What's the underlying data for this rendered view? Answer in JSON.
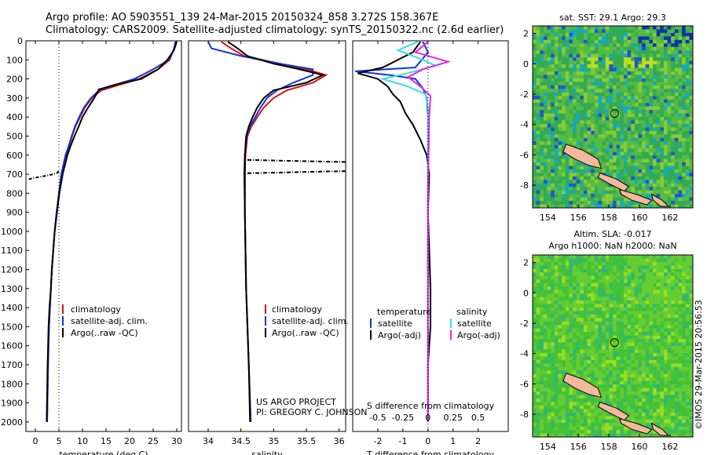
{
  "header": {
    "line1": "Argo profile: AO 5903551_139 24-Mar-2015 20150324_858 3.272S 158.367E",
    "line2": "Climatology: CARS2009. Satellite-adjusted climatology: synTS_20150322.nc (2.6d earlier)"
  },
  "colors": {
    "climatology": "#dd1111",
    "satellite": "#1133dd",
    "argo": "#000000",
    "cyan": "#33ddee",
    "magenta": "#ee22dd",
    "land": "#f2b99c"
  },
  "chart_data": [
    {
      "id": "temperature",
      "type": "line",
      "xlabel": "temperature (deg C)",
      "xlim": [
        -2,
        31
      ],
      "ylim": [
        0,
        2050
      ],
      "xticks": [
        0,
        5,
        10,
        15,
        20,
        25,
        30
      ],
      "yticks": [
        0,
        100,
        200,
        300,
        400,
        500,
        600,
        700,
        800,
        900,
        1000,
        1100,
        1200,
        1300,
        1400,
        1500,
        1600,
        1700,
        1800,
        1900,
        2000
      ],
      "legend": {
        "position": "lower-middle",
        "entries": [
          "climatology",
          "satellite-adj. clim.",
          "Argo(..raw -QC)"
        ]
      },
      "series": [
        {
          "name": "climatology",
          "color": "#dd1111",
          "x": [
            29.8,
            29.7,
            29.3,
            28.5,
            26,
            22,
            18,
            14,
            12,
            10.5,
            9.5,
            8.5,
            7.8,
            7.2,
            6.5,
            5.5,
            5,
            4.5,
            4.1,
            3.8,
            3.5,
            3.3,
            3.1,
            2.9,
            2.7,
            2.5
          ],
          "y": [
            5,
            20,
            50,
            100,
            150,
            200,
            230,
            260,
            300,
            350,
            400,
            450,
            500,
            550,
            600,
            700,
            800,
            900,
            1000,
            1100,
            1200,
            1300,
            1400,
            1500,
            1700,
            2000
          ]
        },
        {
          "name": "satellite-adj. clim.",
          "color": "#1133dd",
          "x": [
            29.7,
            29.6,
            29.3,
            28.3,
            25,
            21,
            17,
            13.5,
            11.8,
            10.3,
            9.3,
            8.4,
            7.7,
            7.1,
            6.4,
            5.5,
            5,
            4.5,
            4.1,
            3.8,
            3.5,
            3.3,
            3.1,
            2.9,
            2.7,
            2.5
          ],
          "y": [
            5,
            20,
            50,
            100,
            150,
            200,
            230,
            260,
            300,
            350,
            400,
            450,
            500,
            550,
            600,
            700,
            800,
            900,
            1000,
            1100,
            1200,
            1300,
            1400,
            1500,
            1700,
            2000
          ]
        },
        {
          "name": "Argo(..raw -QC)",
          "color": "#000000",
          "x": [
            29.9,
            29.8,
            29.4,
            28,
            26,
            22.5,
            17,
            13.5,
            12.5,
            11.2,
            10,
            9.2,
            8.3,
            7.5,
            6.8,
            5.8,
            5.1,
            4.6,
            4.1,
            3.8,
            3.5,
            3.3,
            3,
            2.8,
            2.6,
            2.4
          ],
          "y": [
            5,
            20,
            50,
            100,
            150,
            200,
            230,
            255,
            300,
            350,
            400,
            450,
            500,
            550,
            600,
            700,
            800,
            900,
            1000,
            1100,
            1200,
            1300,
            1400,
            1500,
            1700,
            2000
          ]
        }
      ],
      "raw_dashed": {
        "x": [
          5,
          4.5,
          3,
          1.5,
          -0.5,
          -1.5
        ],
        "y": [
          685,
          695,
          705,
          712,
          720,
          728
        ]
      },
      "reference_line": {
        "x": 5
      }
    },
    {
      "id": "salinity",
      "type": "line",
      "xlabel": "salinity",
      "xlim": [
        33.7,
        36.1
      ],
      "ylim": [
        0,
        2050
      ],
      "xticks": [
        34,
        34.5,
        35,
        35.5,
        36
      ],
      "legend": {
        "position": "lower-middle",
        "entries": [
          "climatology",
          "satellite-adj. clim.",
          "Argo(..raw -QC)"
        ]
      },
      "annotation": [
        "US ARGO PROJECT",
        "PI: GREGORY C. JOHNSON"
      ],
      "series": [
        {
          "name": "climatology",
          "color": "#dd1111",
          "x": [
            34.2,
            34.35,
            34.55,
            35.1,
            35.5,
            35.8,
            35.6,
            35.2,
            35,
            34.85,
            34.75,
            34.66,
            34.6,
            34.57,
            34.56,
            34.56,
            34.57,
            34.58,
            34.6,
            34.62,
            34.65
          ],
          "y": [
            5,
            40,
            80,
            120,
            150,
            180,
            220,
            260,
            300,
            350,
            400,
            450,
            500,
            600,
            700,
            900,
            1100,
            1300,
            1500,
            1700,
            2000
          ]
        },
        {
          "name": "satellite-adj. clim.",
          "color": "#1133dd",
          "x": [
            34.0,
            34.05,
            34.5,
            35.1,
            35.6,
            35.6,
            35.3,
            35.05,
            34.9,
            34.8,
            34.72,
            34.64,
            34.59,
            34.56,
            34.55,
            34.56,
            34.57,
            34.58,
            34.6,
            34.62,
            34.65
          ],
          "y": [
            5,
            40,
            80,
            120,
            150,
            180,
            220,
            260,
            300,
            350,
            400,
            450,
            500,
            600,
            700,
            900,
            1100,
            1300,
            1500,
            1700,
            2000
          ]
        },
        {
          "name": "Argo(..raw -QC)",
          "color": "#000000",
          "x": [
            34.3,
            34.45,
            34.6,
            35.0,
            35.4,
            35.75,
            35.5,
            35.0,
            34.85,
            34.75,
            34.68,
            34.62,
            34.58,
            34.56,
            34.56,
            34.56,
            34.57,
            34.58,
            34.6,
            34.62,
            34.64
          ],
          "y": [
            5,
            40,
            80,
            120,
            150,
            180,
            220,
            260,
            300,
            350,
            400,
            450,
            500,
            600,
            700,
            900,
            1100,
            1300,
            1500,
            1700,
            2000
          ]
        }
      ],
      "raw_dashed": [
        {
          "x": [
            34.6,
            35,
            35.5,
            36.1
          ],
          "y": [
            625,
            628,
            632,
            636
          ]
        },
        {
          "x": [
            34.6,
            35,
            35.5,
            36.1
          ],
          "y": [
            695,
            692,
            688,
            684
          ]
        }
      ]
    },
    {
      "id": "difference",
      "type": "line",
      "xlabel": "T difference from climatology",
      "xlabel_top": "S difference from climatology",
      "xlim": [
        -3,
        3.2
      ],
      "ylim": [
        0,
        2050
      ],
      "xticks": [
        -2,
        -1,
        0,
        1,
        2
      ],
      "xticks_top": [
        -0.5,
        -0.25,
        0,
        0.25,
        0.5
      ],
      "legend_temperature": {
        "title": "temperature",
        "entries": [
          "satellite",
          "Argo(-adj)"
        ]
      },
      "legend_salinity": {
        "title": "salinity",
        "entries": [
          "satellite",
          "Argo(-adj)"
        ]
      },
      "series": [
        {
          "name": "T satellite",
          "color": "#1133dd",
          "x": [
            -0.2,
            0,
            -0.5,
            -2.9,
            -1.5,
            -0.5,
            -0.2,
            -0.05,
            0,
            0,
            0,
            0
          ],
          "y": [
            5,
            60,
            140,
            160,
            180,
            200,
            250,
            300,
            400,
            800,
            1400,
            2000
          ]
        },
        {
          "name": "T Argo(-adj)",
          "color": "#000000",
          "x": [
            -0.3,
            -0.6,
            -1.8,
            -2.8,
            -2,
            -1.6,
            -1.4,
            -1.1,
            -0.9,
            -0.6,
            -0.3,
            -0.05,
            0.05,
            0,
            0.1,
            0.1,
            0,
            0
          ],
          "y": [
            5,
            60,
            140,
            170,
            200,
            240,
            280,
            320,
            380,
            440,
            520,
            600,
            700,
            900,
            1300,
            1500,
            1700,
            2000
          ]
        },
        {
          "name": "S satellite",
          "color": "#33ddee",
          "x": [
            -0.4,
            -1.2,
            -0.2,
            0.3,
            -0.8,
            -1.8,
            -0.8,
            -0.1,
            0,
            0,
            0,
            0
          ],
          "y": [
            5,
            50,
            100,
            130,
            170,
            200,
            240,
            280,
            350,
            600,
            1200,
            2000
          ]
        },
        {
          "name": "S Argo(-adj)",
          "color": "#ee22dd",
          "x": [
            0,
            -0.5,
            0.8,
            -0.2,
            -0.8,
            -0.3,
            0.1,
            0.05,
            0,
            0,
            0,
            0
          ],
          "y": [
            5,
            60,
            110,
            150,
            190,
            240,
            290,
            400,
            800,
            1400,
            1800,
            2000
          ]
        }
      ]
    },
    {
      "id": "sst_map",
      "type": "heatmap",
      "title": "sat. SST: 29.1  Argo: 29.3",
      "xlim": [
        153,
        163.5
      ],
      "ylim": [
        -9.5,
        2.5
      ],
      "xticks": [
        154,
        156,
        158,
        160,
        162
      ],
      "yticks": [
        -8,
        -6,
        -4,
        -2,
        0,
        2
      ],
      "marker": {
        "lon": 158.367,
        "lat": -3.272
      }
    },
    {
      "id": "sla_map",
      "type": "heatmap",
      "title": "Altim. SLA: -0.017",
      "subtitle": "Argo h1000: NaN h2000: NaN",
      "xlim": [
        153,
        163.5
      ],
      "ylim": [
        -9.5,
        2.5
      ],
      "xticks": [
        154,
        156,
        158,
        160,
        162
      ],
      "yticks": [
        -8,
        -6,
        -4,
        -2,
        0,
        2
      ],
      "marker": {
        "lon": 158.367,
        "lat": -3.272
      }
    }
  ],
  "credit": "©IMOS 29-Mar-2015 20:56:53"
}
